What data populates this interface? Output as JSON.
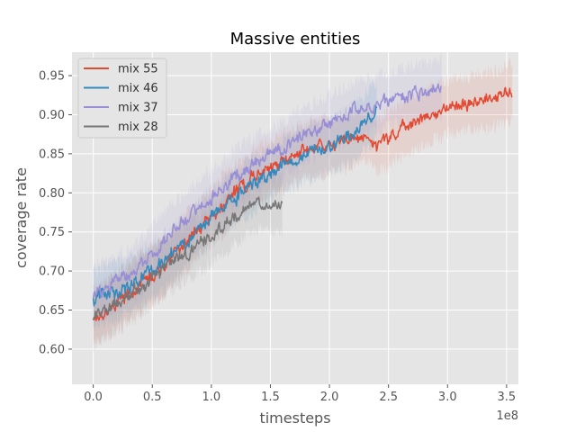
{
  "chart_data": {
    "type": "line",
    "title": "Massive entities",
    "xlabel": "timesteps",
    "ylabel": "coverage rate",
    "x_scale_label": "1e8",
    "xlim": [
      -0.18,
      3.6
    ],
    "ylim": [
      0.555,
      0.98
    ],
    "xticks": [
      {
        "value": 0.0,
        "label": "0.0"
      },
      {
        "value": 0.5,
        "label": "0.5"
      },
      {
        "value": 1.0,
        "label": "1.0"
      },
      {
        "value": 1.5,
        "label": "1.5"
      },
      {
        "value": 2.0,
        "label": "2.0"
      },
      {
        "value": 2.5,
        "label": "2.5"
      },
      {
        "value": 3.0,
        "label": "3.0"
      },
      {
        "value": 3.5,
        "label": "3.5"
      }
    ],
    "yticks": [
      {
        "value": 0.6,
        "label": "0.60"
      },
      {
        "value": 0.65,
        "label": "0.65"
      },
      {
        "value": 0.7,
        "label": "0.70"
      },
      {
        "value": 0.75,
        "label": "0.75"
      },
      {
        "value": 0.8,
        "label": "0.80"
      },
      {
        "value": 0.85,
        "label": "0.85"
      },
      {
        "value": 0.9,
        "label": "0.90"
      },
      {
        "value": 0.95,
        "label": "0.95"
      }
    ],
    "grid": true,
    "legend_position": "top-left",
    "background": "#e5e5e5",
    "series": [
      {
        "name": "mix 55",
        "color": "#e24a33",
        "band": 0.035,
        "x": [
          0,
          0.2,
          0.4,
          0.6,
          0.8,
          1.0,
          1.2,
          1.4,
          1.6,
          1.8,
          2.0,
          2.2,
          2.35,
          2.4,
          2.6,
          2.8,
          3.0,
          3.2,
          3.4,
          3.55
        ],
        "y": [
          0.64,
          0.66,
          0.685,
          0.705,
          0.74,
          0.77,
          0.8,
          0.825,
          0.84,
          0.855,
          0.86,
          0.87,
          0.875,
          0.86,
          0.88,
          0.895,
          0.91,
          0.915,
          0.92,
          0.93
        ]
      },
      {
        "name": "mix 46",
        "color": "#348abd",
        "band": 0.035,
        "x": [
          0,
          0.2,
          0.4,
          0.6,
          0.8,
          1.0,
          1.2,
          1.4,
          1.6,
          1.8,
          2.0,
          2.2,
          2.4
        ],
        "y": [
          0.665,
          0.675,
          0.69,
          0.71,
          0.74,
          0.77,
          0.795,
          0.815,
          0.835,
          0.85,
          0.86,
          0.875,
          0.905
        ]
      },
      {
        "name": "mix 37",
        "color": "#988ed5",
        "band": 0.035,
        "x": [
          0,
          0.2,
          0.4,
          0.6,
          0.8,
          1.0,
          1.2,
          1.4,
          1.6,
          1.8,
          2.0,
          2.2,
          2.4,
          2.6,
          2.8,
          2.95
        ],
        "y": [
          0.67,
          0.685,
          0.705,
          0.74,
          0.77,
          0.795,
          0.82,
          0.84,
          0.855,
          0.875,
          0.89,
          0.905,
          0.915,
          0.925,
          0.93,
          0.935
        ]
      },
      {
        "name": "mix 28",
        "color": "#777777",
        "band": 0.035,
        "x": [
          0,
          0.2,
          0.4,
          0.6,
          0.8,
          1.0,
          1.2,
          1.4,
          1.6
        ],
        "y": [
          0.64,
          0.66,
          0.68,
          0.705,
          0.725,
          0.745,
          0.77,
          0.79,
          0.785
        ]
      }
    ]
  }
}
